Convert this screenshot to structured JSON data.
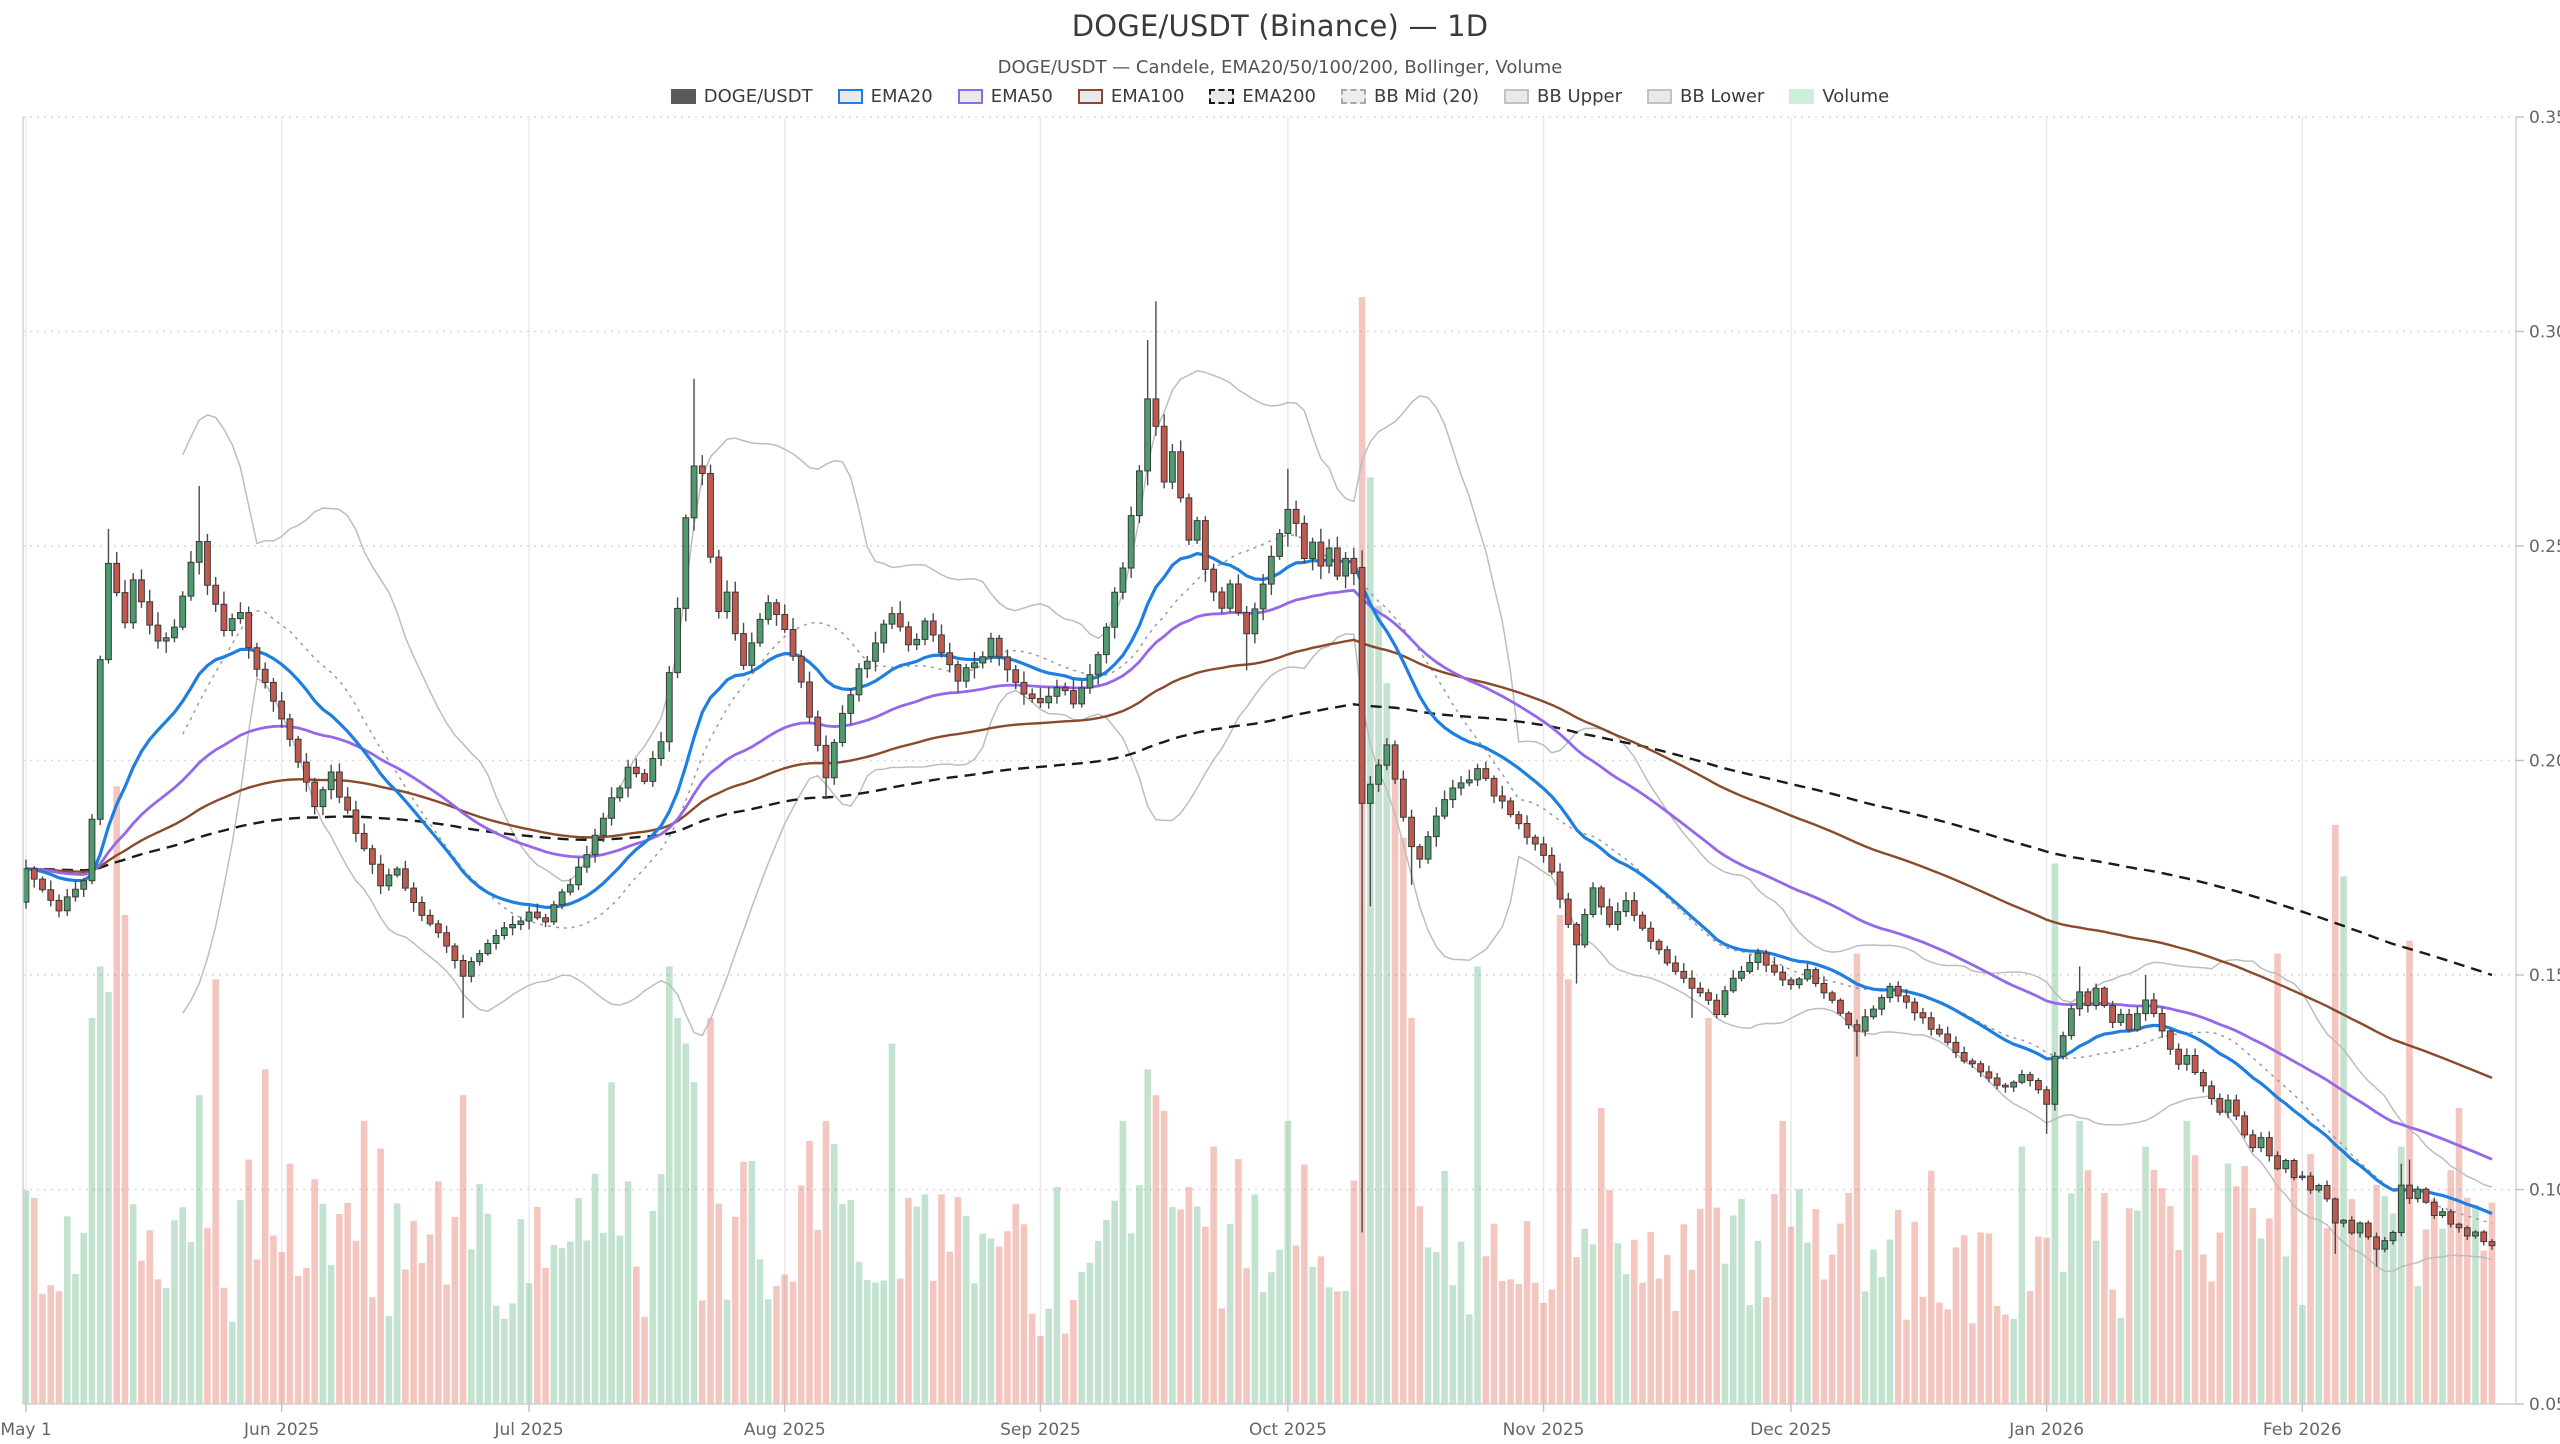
{
  "header": {
    "title": "DOGE/USDT (Binance) — 1D",
    "subtitle": "DOGE/USDT — Candele, EMA20/50/100/200, Bollinger, Volume"
  },
  "legend": [
    {
      "label": "DOGE/USDT",
      "fill": "#595959",
      "border": "#595959",
      "dash": false
    },
    {
      "label": "EMA20",
      "fill": "#e9e9e9",
      "border": "#1f7fe0",
      "dash": false
    },
    {
      "label": "EMA50",
      "fill": "#e9e9e9",
      "border": "#9467eb",
      "dash": false
    },
    {
      "label": "EMA100",
      "fill": "#e9e9e9",
      "border": "#8a4a2b",
      "dash": false
    },
    {
      "label": "EMA200",
      "fill": "#e9e9e9",
      "border": "#1a1a1a",
      "dash": true
    },
    {
      "label": "BB Mid (20)",
      "fill": "#ededed",
      "border": "#a8a8a8",
      "dash": true
    },
    {
      "label": "BB Upper",
      "fill": "#e9e9e9",
      "border": "#c2c2c2",
      "dash": false
    },
    {
      "label": "BB Lower",
      "fill": "#e9e9e9",
      "border": "#c2c2c2",
      "dash": false
    },
    {
      "label": "Volume",
      "fill": "#cdeedd",
      "border": "#cdeedd",
      "dash": false
    }
  ],
  "colors": {
    "candle_up": "#4e9b6e",
    "candle_down": "#c05a4e",
    "candle_border": "#3a3a3a",
    "wick": "#4a4a4a",
    "volume_up": "rgba(96,180,130,0.38)",
    "volume_down": "rgba(226,106,90,0.38)",
    "ema20": "#1f7fe0",
    "ema50": "#9467eb",
    "ema100": "#8a4a2b",
    "ema200": "#1a1a1a",
    "bb_mid": "#9a9a9a",
    "bb_band": "#bdbdbd",
    "grid_h": "#d9d9d9",
    "grid_v": "#e9e9e9",
    "axis": "#d0d0d0",
    "tick": "#c0c0c0",
    "tick_label": "#666666"
  },
  "chart_data": {
    "type": "candlestick",
    "symbol": "DOGE/USDT",
    "exchange": "Binance",
    "timeframe": "1D",
    "title": "DOGE/USDT (Binance) — 1D",
    "grid": true,
    "legend_position": "top-center",
    "y_axis": {
      "min": 0.05,
      "max": 0.35,
      "tick_step": 0.05,
      "tick_labels": [
        "0.35",
        "0.30",
        "0.25",
        "0.20",
        "0.15",
        "0.10",
        "0.05"
      ]
    },
    "x_axis": {
      "start_date": "2025-05-01",
      "num_days": 300,
      "month_ticks": [
        {
          "day": 0,
          "label": "May 1"
        },
        {
          "day": 31,
          "label": "Jun 2025"
        },
        {
          "day": 61,
          "label": "Jul 2025"
        },
        {
          "day": 92,
          "label": "Aug 2025"
        },
        {
          "day": 123,
          "label": "Sep 2025"
        },
        {
          "day": 153,
          "label": "Oct 2025"
        },
        {
          "day": 184,
          "label": "Nov 2025"
        },
        {
          "day": 214,
          "label": "Dec 2025"
        },
        {
          "day": 245,
          "label": "Jan 2026"
        },
        {
          "day": 276,
          "label": "Feb 2026"
        }
      ]
    },
    "indicators": {
      "ema_periods": [
        20,
        50,
        100,
        200
      ],
      "bollinger": {
        "period": 20,
        "mult": 2
      }
    },
    "seed": 7,
    "first_open": 0.167,
    "noise": 0.006,
    "close_waypoints": [
      [
        0,
        0.175
      ],
      [
        1,
        0.172
      ],
      [
        2,
        0.17
      ],
      [
        3,
        0.167
      ],
      [
        4,
        0.165
      ],
      [
        5,
        0.168
      ],
      [
        6,
        0.17
      ],
      [
        7,
        0.172
      ],
      [
        8,
        0.186
      ],
      [
        9,
        0.223
      ],
      [
        10,
        0.246
      ],
      [
        11,
        0.239
      ],
      [
        12,
        0.232
      ],
      [
        13,
        0.242
      ],
      [
        14,
        0.237
      ],
      [
        16,
        0.228
      ],
      [
        18,
        0.231
      ],
      [
        20,
        0.246
      ],
      [
        21,
        0.251
      ],
      [
        22,
        0.241
      ],
      [
        24,
        0.23
      ],
      [
        26,
        0.234
      ],
      [
        28,
        0.221
      ],
      [
        30,
        0.214
      ],
      [
        31,
        0.21
      ],
      [
        32,
        0.205
      ],
      [
        34,
        0.195
      ],
      [
        35,
        0.189
      ],
      [
        37,
        0.197
      ],
      [
        39,
        0.188
      ],
      [
        41,
        0.179
      ],
      [
        43,
        0.171
      ],
      [
        45,
        0.175
      ],
      [
        47,
        0.167
      ],
      [
        49,
        0.162
      ],
      [
        51,
        0.157
      ],
      [
        53,
        0.15
      ],
      [
        55,
        0.155
      ],
      [
        57,
        0.159
      ],
      [
        59,
        0.162
      ],
      [
        61,
        0.165
      ],
      [
        63,
        0.162
      ],
      [
        65,
        0.169
      ],
      [
        67,
        0.175
      ],
      [
        69,
        0.183
      ],
      [
        71,
        0.191
      ],
      [
        73,
        0.198
      ],
      [
        75,
        0.195
      ],
      [
        77,
        0.204
      ],
      [
        78,
        0.221
      ],
      [
        79,
        0.235
      ],
      [
        80,
        0.256
      ],
      [
        81,
        0.269
      ],
      [
        82,
        0.267
      ],
      [
        83,
        0.247
      ],
      [
        84,
        0.235
      ],
      [
        85,
        0.239
      ],
      [
        86,
        0.23
      ],
      [
        87,
        0.222
      ],
      [
        88,
        0.227
      ],
      [
        89,
        0.233
      ],
      [
        90,
        0.237
      ],
      [
        92,
        0.23
      ],
      [
        94,
        0.218
      ],
      [
        96,
        0.204
      ],
      [
        97,
        0.196
      ],
      [
        98,
        0.204
      ],
      [
        99,
        0.211
      ],
      [
        101,
        0.221
      ],
      [
        103,
        0.227
      ],
      [
        105,
        0.234
      ],
      [
        107,
        0.227
      ],
      [
        109,
        0.232
      ],
      [
        111,
        0.225
      ],
      [
        113,
        0.219
      ],
      [
        115,
        0.223
      ],
      [
        117,
        0.228
      ],
      [
        119,
        0.221
      ],
      [
        121,
        0.216
      ],
      [
        123,
        0.213
      ],
      [
        125,
        0.217
      ],
      [
        127,
        0.213
      ],
      [
        129,
        0.22
      ],
      [
        131,
        0.231
      ],
      [
        133,
        0.245
      ],
      [
        134,
        0.257
      ],
      [
        135,
        0.268
      ],
      [
        136,
        0.284
      ],
      [
        137,
        0.278
      ],
      [
        138,
        0.265
      ],
      [
        139,
        0.272
      ],
      [
        140,
        0.261
      ],
      [
        141,
        0.251
      ],
      [
        142,
        0.256
      ],
      [
        143,
        0.245
      ],
      [
        144,
        0.239
      ],
      [
        145,
        0.235
      ],
      [
        146,
        0.241
      ],
      [
        147,
        0.234
      ],
      [
        148,
        0.229
      ],
      [
        149,
        0.235
      ],
      [
        150,
        0.241
      ],
      [
        151,
        0.247
      ],
      [
        152,
        0.253
      ],
      [
        153,
        0.259
      ],
      [
        154,
        0.255
      ],
      [
        155,
        0.247
      ],
      [
        156,
        0.251
      ],
      [
        157,
        0.245
      ],
      [
        158,
        0.249
      ],
      [
        159,
        0.243
      ],
      [
        160,
        0.247
      ],
      [
        161,
        0.244
      ],
      [
        162,
        0.19
      ],
      [
        163,
        0.194
      ],
      [
        164,
        0.199
      ],
      [
        165,
        0.204
      ],
      [
        166,
        0.196
      ],
      [
        167,
        0.187
      ],
      [
        168,
        0.18
      ],
      [
        169,
        0.177
      ],
      [
        170,
        0.182
      ],
      [
        171,
        0.187
      ],
      [
        172,
        0.191
      ],
      [
        174,
        0.195
      ],
      [
        176,
        0.198
      ],
      [
        178,
        0.192
      ],
      [
        180,
        0.187
      ],
      [
        182,
        0.182
      ],
      [
        184,
        0.178
      ],
      [
        185,
        0.174
      ],
      [
        186,
        0.168
      ],
      [
        187,
        0.162
      ],
      [
        188,
        0.157
      ],
      [
        189,
        0.164
      ],
      [
        190,
        0.17
      ],
      [
        191,
        0.166
      ],
      [
        192,
        0.162
      ],
      [
        194,
        0.167
      ],
      [
        196,
        0.161
      ],
      [
        198,
        0.156
      ],
      [
        200,
        0.151
      ],
      [
        202,
        0.147
      ],
      [
        204,
        0.144
      ],
      [
        205,
        0.141
      ],
      [
        206,
        0.146
      ],
      [
        208,
        0.151
      ],
      [
        210,
        0.155
      ],
      [
        212,
        0.151
      ],
      [
        214,
        0.148
      ],
      [
        216,
        0.151
      ],
      [
        218,
        0.146
      ],
      [
        220,
        0.141
      ],
      [
        222,
        0.137
      ],
      [
        224,
        0.142
      ],
      [
        226,
        0.147
      ],
      [
        228,
        0.144
      ],
      [
        230,
        0.14
      ],
      [
        232,
        0.136
      ],
      [
        234,
        0.132
      ],
      [
        236,
        0.129
      ],
      [
        238,
        0.126
      ],
      [
        240,
        0.124
      ],
      [
        242,
        0.127
      ],
      [
        244,
        0.123
      ],
      [
        245,
        0.12
      ],
      [
        246,
        0.131
      ],
      [
        247,
        0.136
      ],
      [
        248,
        0.142
      ],
      [
        249,
        0.146
      ],
      [
        250,
        0.143
      ],
      [
        251,
        0.147
      ],
      [
        252,
        0.143
      ],
      [
        253,
        0.139
      ],
      [
        254,
        0.141
      ],
      [
        255,
        0.137
      ],
      [
        256,
        0.141
      ],
      [
        257,
        0.144
      ],
      [
        258,
        0.141
      ],
      [
        259,
        0.137
      ],
      [
        260,
        0.133
      ],
      [
        261,
        0.129
      ],
      [
        262,
        0.131
      ],
      [
        263,
        0.127
      ],
      [
        264,
        0.124
      ],
      [
        265,
        0.121
      ],
      [
        266,
        0.118
      ],
      [
        267,
        0.121
      ],
      [
        268,
        0.117
      ],
      [
        269,
        0.113
      ],
      [
        270,
        0.11
      ],
      [
        271,
        0.112
      ],
      [
        272,
        0.108
      ],
      [
        273,
        0.105
      ],
      [
        274,
        0.107
      ],
      [
        275,
        0.103
      ],
      [
        276,
        0.103
      ],
      [
        277,
        0.1
      ],
      [
        278,
        0.101
      ],
      [
        279,
        0.098
      ],
      [
        280,
        0.092
      ],
      [
        281,
        0.093
      ],
      [
        282,
        0.09
      ],
      [
        283,
        0.092
      ],
      [
        284,
        0.089
      ],
      [
        285,
        0.086
      ],
      [
        286,
        0.088
      ],
      [
        287,
        0.09
      ],
      [
        288,
        0.101
      ],
      [
        289,
        0.098
      ],
      [
        290,
        0.1
      ],
      [
        291,
        0.097
      ],
      [
        292,
        0.094
      ],
      [
        293,
        0.095
      ],
      [
        294,
        0.092
      ],
      [
        295,
        0.091
      ],
      [
        296,
        0.089
      ],
      [
        297,
        0.09
      ],
      [
        298,
        0.088
      ],
      [
        299,
        0.087
      ]
    ],
    "candle_overrides": {
      "10": {
        "h": 0.254
      },
      "21": {
        "h": 0.264
      },
      "53": {
        "l": 0.14
      },
      "81": {
        "h": 0.289
      },
      "97": {
        "l": 0.191
      },
      "136": {
        "h": 0.298
      },
      "137": {
        "h": 0.307
      },
      "148": {
        "l": 0.221
      },
      "153": {
        "h": 0.268
      },
      "162": {
        "o": 0.245,
        "h": 0.249,
        "l": 0.09,
        "c": 0.19
      },
      "163": {
        "l": 0.166
      },
      "168": {
        "l": 0.171
      },
      "188": {
        "l": 0.148
      },
      "202": {
        "l": 0.14
      },
      "222": {
        "l": 0.131
      },
      "245": {
        "l": 0.113
      },
      "249": {
        "h": 0.152
      },
      "257": {
        "h": 0.15
      },
      "280": {
        "l": 0.085
      },
      "285": {
        "l": 0.082
      },
      "288": {
        "h": 0.106
      },
      "289": {
        "h": 0.107
      }
    },
    "volume_base_range": [
      0.045,
      0.155
    ],
    "volume_spikes": {
      "8": 0.3,
      "9": 0.34,
      "10": 0.32,
      "11": 0.48,
      "12": 0.38,
      "21": 0.24,
      "23": 0.33,
      "29": 0.26,
      "41": 0.22,
      "53": 0.24,
      "71": 0.25,
      "78": 0.34,
      "79": 0.3,
      "80": 0.28,
      "81": 0.25,
      "83": 0.3,
      "97": 0.22,
      "105": 0.28,
      "133": 0.22,
      "136": 0.26,
      "137": 0.24,
      "144": 0.2,
      "153": 0.22,
      "162": 0.86,
      "163": 0.72,
      "164": 0.62,
      "165": 0.56,
      "166": 0.5,
      "167": 0.44,
      "168": 0.3,
      "176": 0.34,
      "186": 0.38,
      "187": 0.33,
      "191": 0.23,
      "204": 0.3,
      "213": 0.22,
      "222": 0.35,
      "242": 0.2,
      "246": 0.42,
      "249": 0.22,
      "257": 0.2,
      "262": 0.22,
      "273": 0.35,
      "280": 0.45,
      "281": 0.41,
      "288": 0.2,
      "289": 0.36,
      "295": 0.23
    }
  }
}
